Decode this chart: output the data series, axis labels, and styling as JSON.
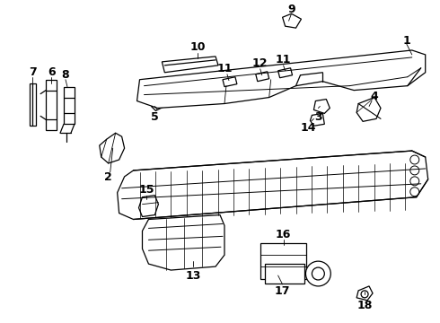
{
  "background_color": "#ffffff",
  "fig_width": 4.9,
  "fig_height": 3.6,
  "dpi": 100,
  "line_color": "#000000",
  "lw": 0.9
}
